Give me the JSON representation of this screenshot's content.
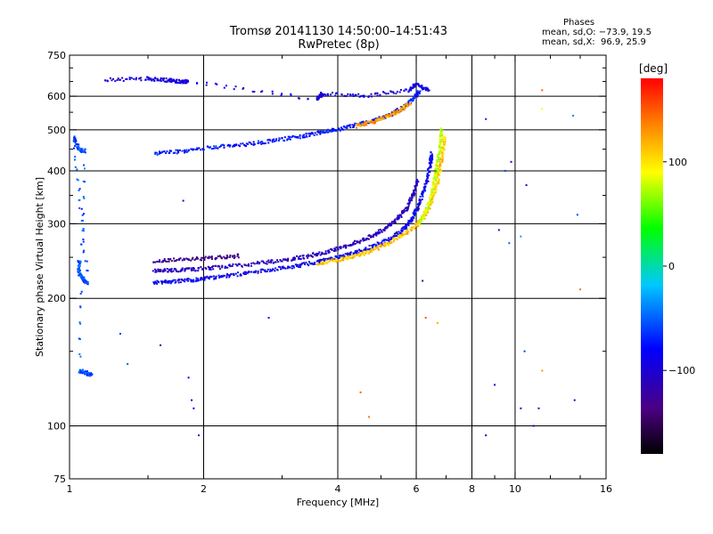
{
  "title": {
    "line1": "Tromsø 20141130 14:50:00–14:51:43",
    "line2": "RwPretec (8p)"
  },
  "phase_box": {
    "heading": "Phases",
    "o_line": "mean, sd,O: −73.9, 19.5",
    "x_line": "mean, sd,X:  96.9, 25.9"
  },
  "colorbar": {
    "unit": "deg",
    "range": [
      -180,
      180
    ],
    "ticks": [
      100,
      0,
      -100
    ],
    "tick_labels": [
      "100",
      "0",
      "−100"
    ],
    "colormap": "rainbow (black→purple→blue→cyan→green→yellow→orange→red)"
  },
  "chart_data": {
    "type": "scatter",
    "xlabel": "Frequency [MHz]",
    "ylabel": "Stationary phase Virtual Height [km]",
    "xscale": "log",
    "yscale": "log",
    "xlim": [
      1,
      16
    ],
    "ylim": [
      75,
      750
    ],
    "xticks": [
      1,
      2,
      4,
      6,
      8,
      10,
      16
    ],
    "xtick_labels": [
      "1",
      "2",
      "4",
      "6",
      "8",
      "10",
      "16"
    ],
    "xminor": [
      1.5,
      3,
      5,
      7,
      9,
      12,
      14
    ],
    "yticks": [
      75,
      100,
      200,
      300,
      400,
      500,
      600,
      750
    ],
    "ytick_labels": [
      "75",
      "100",
      "200",
      "300",
      "400",
      "500",
      "600",
      "750"
    ],
    "yminor": [
      150,
      250,
      350,
      450,
      550,
      650,
      700
    ],
    "grid_x": [
      2,
      4,
      6,
      8,
      10
    ],
    "grid_y": [
      100,
      200,
      300,
      400,
      500,
      600
    ],
    "series": [
      {
        "values": [
          [
            1.55,
            218
          ],
          [
            1.7,
            219
          ],
          [
            1.9,
            221
          ],
          [
            2.1,
            224
          ],
          [
            2.4,
            228
          ],
          [
            2.8,
            233
          ],
          [
            3.2,
            238
          ],
          [
            3.6,
            244
          ],
          [
            4.0,
            250
          ],
          [
            4.4,
            257
          ],
          [
            4.8,
            265
          ],
          [
            5.2,
            275
          ],
          [
            5.6,
            290
          ],
          [
            5.9,
            310
          ],
          [
            6.1,
            335
          ],
          [
            6.3,
            370
          ],
          [
            6.45,
            410
          ],
          [
            6.5,
            440
          ]
        ],
        "phase": -85
      },
      {
        "values": [
          [
            1.55,
            232
          ],
          [
            1.7,
            233
          ],
          [
            1.9,
            234
          ],
          [
            2.2,
            237
          ],
          [
            2.6,
            241
          ],
          [
            3.0,
            246
          ],
          [
            3.4,
            251
          ],
          [
            3.8,
            258
          ],
          [
            4.2,
            266
          ],
          [
            4.6,
            276
          ],
          [
            5.0,
            288
          ],
          [
            5.4,
            305
          ],
          [
            5.7,
            325
          ],
          [
            5.9,
            350
          ],
          [
            6.05,
            380
          ]
        ],
        "phase": -110
      },
      {
        "values": [
          [
            1.55,
            245
          ],
          [
            1.8,
            247
          ],
          [
            2.1,
            249
          ],
          [
            2.4,
            252
          ]
        ],
        "phase": -130
      },
      {
        "values": [
          [
            3.6,
            242
          ],
          [
            4.0,
            246
          ],
          [
            4.4,
            252
          ],
          [
            4.8,
            260
          ],
          [
            5.2,
            270
          ],
          [
            5.6,
            282
          ],
          [
            6.0,
            297
          ],
          [
            6.3,
            315
          ],
          [
            6.5,
            340
          ],
          [
            6.7,
            375
          ],
          [
            6.8,
            410
          ],
          [
            6.9,
            450
          ],
          [
            6.95,
            480
          ]
        ],
        "phase": 110
      },
      {
        "values": [
          [
            6.1,
            300
          ],
          [
            6.3,
            320
          ],
          [
            6.5,
            350
          ],
          [
            6.6,
            380
          ],
          [
            6.7,
            420
          ],
          [
            6.8,
            460
          ],
          [
            6.85,
            500
          ]
        ],
        "phase": 80
      },
      {
        "values": [
          [
            1.55,
            440
          ],
          [
            1.8,
            445
          ],
          [
            2.1,
            455
          ],
          [
            2.5,
            462
          ],
          [
            2.9,
            472
          ],
          [
            3.3,
            482
          ],
          [
            3.7,
            494
          ],
          [
            4.1,
            504
          ],
          [
            4.5,
            516
          ],
          [
            4.9,
            528
          ],
          [
            5.3,
            545
          ],
          [
            5.6,
            565
          ],
          [
            5.9,
            590
          ],
          [
            6.1,
            615
          ]
        ],
        "phase": -75
      },
      {
        "values": [
          [
            4.4,
            510
          ],
          [
            4.8,
            522
          ],
          [
            5.2,
            538
          ],
          [
            5.5,
            555
          ],
          [
            5.8,
            575
          ]
        ],
        "phase": 125
      },
      {
        "values": [
          [
            1.05,
            245
          ],
          [
            1.05,
            230
          ],
          [
            1.08,
            220
          ],
          [
            1.1,
            218
          ],
          [
            1.02,
            480
          ],
          [
            1.05,
            450
          ],
          [
            1.08,
            445
          ],
          [
            1.05,
            135
          ],
          [
            1.1,
            133
          ],
          [
            1.12,
            132
          ]
        ],
        "phase": -55
      },
      {
        "values": [
          [
            1.2,
            655
          ],
          [
            1.5,
            660
          ],
          [
            1.65,
            655
          ],
          [
            1.75,
            650
          ],
          [
            1.85,
            650
          ],
          [
            3.6,
            590
          ],
          [
            3.7,
            610
          ],
          [
            4.6,
            600
          ],
          [
            5.8,
            620
          ],
          [
            6.0,
            640
          ],
          [
            6.4,
            620
          ]
        ],
        "phase": -95
      }
    ],
    "scatter_noise": [
      {
        "x": 8.6,
        "y": 530,
        "phase": -70
      },
      {
        "x": 9.5,
        "y": 400,
        "phase": -60
      },
      {
        "x": 9.8,
        "y": 420,
        "phase": -110
      },
      {
        "x": 10.6,
        "y": 370,
        "phase": -90
      },
      {
        "x": 11.5,
        "y": 620,
        "phase": 150
      },
      {
        "x": 11.5,
        "y": 560,
        "phase": 90
      },
      {
        "x": 13.5,
        "y": 540,
        "phase": -40
      },
      {
        "x": 13.8,
        "y": 315,
        "phase": -55
      },
      {
        "x": 14.0,
        "y": 210,
        "phase": 140
      },
      {
        "x": 9.2,
        "y": 290,
        "phase": -120
      },
      {
        "x": 9.7,
        "y": 270,
        "phase": -50
      },
      {
        "x": 10.3,
        "y": 280,
        "phase": -30
      },
      {
        "x": 9.0,
        "y": 125,
        "phase": -100
      },
      {
        "x": 10.3,
        "y": 110,
        "phase": -115
      },
      {
        "x": 11.0,
        "y": 100,
        "phase": -105
      },
      {
        "x": 11.3,
        "y": 110,
        "phase": -130
      },
      {
        "x": 11.5,
        "y": 135,
        "phase": 130
      },
      {
        "x": 10.5,
        "y": 150,
        "phase": -60
      },
      {
        "x": 13.6,
        "y": 115,
        "phase": -110
      },
      {
        "x": 8.6,
        "y": 95,
        "phase": -100
      },
      {
        "x": 6.2,
        "y": 220,
        "phase": -120
      },
      {
        "x": 6.3,
        "y": 180,
        "phase": 150
      },
      {
        "x": 6.7,
        "y": 175,
        "phase": 120
      },
      {
        "x": 4.7,
        "y": 105,
        "phase": 140
      },
      {
        "x": 4.5,
        "y": 120,
        "phase": 150
      },
      {
        "x": 2.8,
        "y": 180,
        "phase": -90
      },
      {
        "x": 1.85,
        "y": 130,
        "phase": -90
      },
      {
        "x": 1.88,
        "y": 115,
        "phase": -85
      },
      {
        "x": 1.9,
        "y": 110,
        "phase": -80
      },
      {
        "x": 1.95,
        "y": 95,
        "phase": -70
      },
      {
        "x": 1.3,
        "y": 165,
        "phase": -60
      },
      {
        "x": 1.35,
        "y": 140,
        "phase": -50
      },
      {
        "x": 1.6,
        "y": 155,
        "phase": -120
      },
      {
        "x": 1.8,
        "y": 340,
        "phase": -120
      }
    ]
  }
}
